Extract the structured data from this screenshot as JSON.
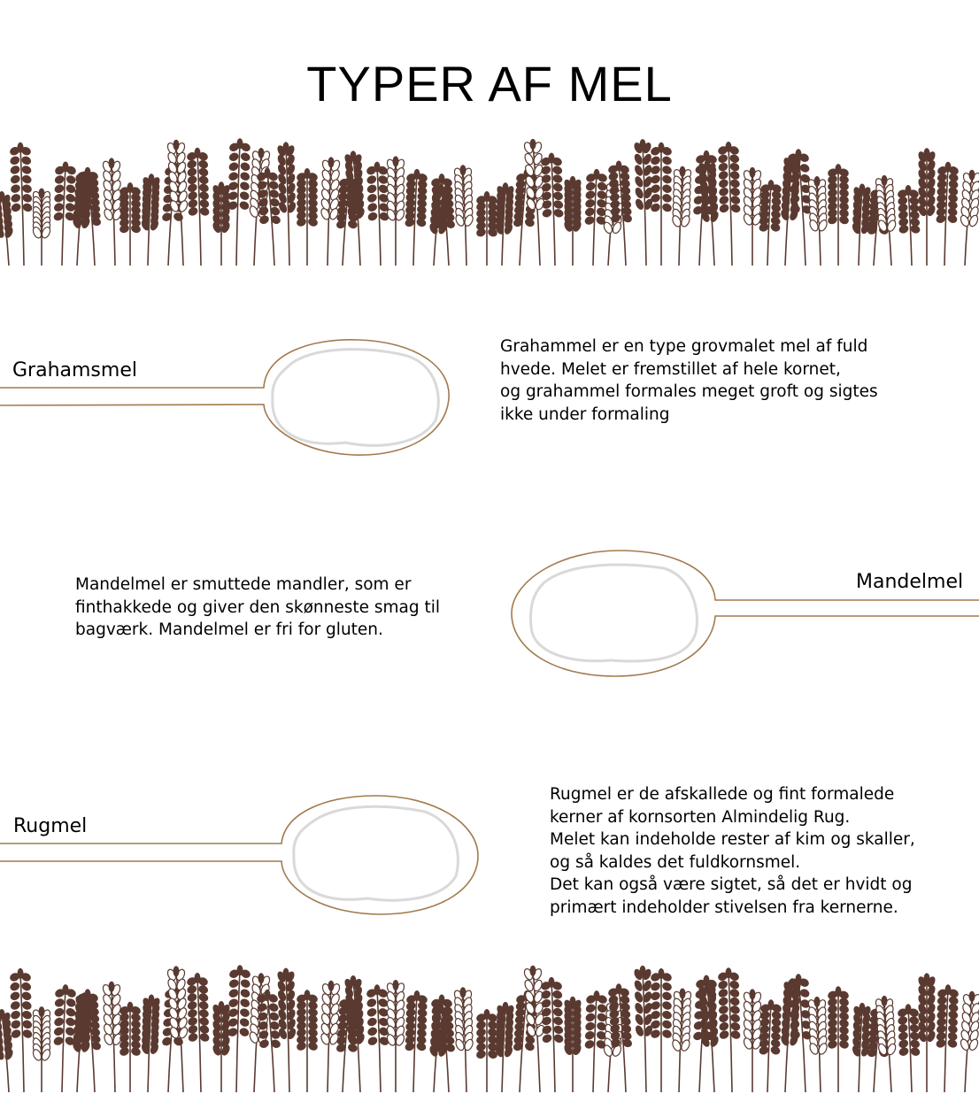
{
  "page": {
    "title": "TYPER AF MEL"
  },
  "colors": {
    "wheat": "#5a3a30",
    "spoon_outline": "#a27a4e",
    "flour": "#d9d9d9"
  },
  "icons": {
    "wheat_border": "wheat-stalks-icon",
    "spoon": "spoon-icon"
  },
  "flours": [
    {
      "name": "Grahamsmel",
      "description": "Grahammel er en type grovmalet mel af fuld\nhvede. Melet er fremstillet af hele kornet,\nog grahammel formales meget groft og sigtes\nikke under formaling"
    },
    {
      "name": "Mandelmel",
      "description": "Mandelmel er smuttede mandler, som er\nfinthakkede og giver den skønneste smag til\nbagværk. Mandelmel er fri for gluten."
    },
    {
      "name": "Rugmel",
      "description": "Rugmel er de afskallede og fint formalede\nkerner af kornsorten Almindelig Rug.\nMelet kan indeholde rester af kim og skaller,\nog så kaldes det fuldkornsmel.\nDet kan også være sigtet, så det er hvidt og\nprimært indeholder stivelsen fra kernerne."
    }
  ]
}
